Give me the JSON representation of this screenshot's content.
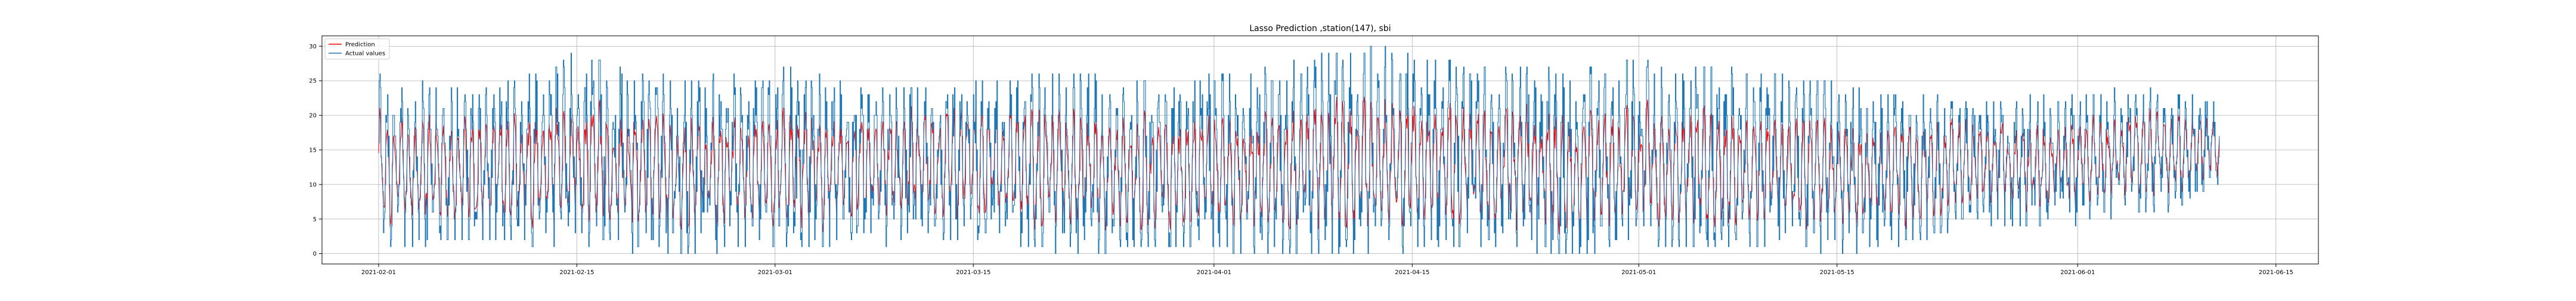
{
  "chart_data": {
    "type": "line",
    "title": "Lasso Prediction ,station(147), sbi",
    "xlabel": "",
    "ylabel": "",
    "x_range": [
      "2021-01-28",
      "2021-06-18"
    ],
    "ylim": [
      -1.5,
      31.5
    ],
    "grid": true,
    "legend_position": "top-left",
    "x_ticks": [
      "2021-02-01",
      "2021-02-15",
      "2021-03-01",
      "2021-03-15",
      "2021-04-01",
      "2021-04-15",
      "2021-05-01",
      "2021-05-15",
      "2021-06-01",
      "2021-06-15"
    ],
    "y_ticks": [
      0,
      5,
      10,
      15,
      20,
      25,
      30
    ],
    "data_range": [
      "2021-02-01",
      "2021-06-11"
    ],
    "series": [
      {
        "name": "Prediction",
        "color": "#ff0000"
      },
      {
        "name": "Actual values",
        "color": "#1f77b4"
      }
    ],
    "daily_summary": {
      "dates": [
        "2021-02-01",
        "2021-02-08",
        "2021-02-15",
        "2021-02-22",
        "2021-03-01",
        "2021-03-08",
        "2021-03-15",
        "2021-03-22",
        "2021-03-29",
        "2021-04-05",
        "2021-04-12",
        "2021-04-19",
        "2021-04-26",
        "2021-05-03",
        "2021-05-10",
        "2021-05-17",
        "2021-05-24",
        "2021-05-31",
        "2021-06-07",
        "2021-06-11"
      ],
      "actual_high": [
        26,
        23,
        29,
        25,
        27,
        24,
        25,
        26,
        25,
        27,
        30,
        27,
        27,
        28,
        26,
        24,
        22,
        23,
        24,
        22
      ],
      "actual_low": [
        1,
        2,
        1,
        0,
        1,
        1,
        2,
        0,
        1,
        0,
        0,
        1,
        0,
        1,
        1,
        0,
        4,
        4,
        6,
        9
      ],
      "prediction_high": [
        22,
        20,
        23,
        21,
        22,
        21,
        24,
        22,
        21,
        22,
        24,
        22,
        22,
        23,
        21,
        20,
        20,
        20,
        22,
        21
      ],
      "prediction_low": [
        3,
        4,
        3,
        2,
        3,
        3,
        4,
        2,
        3,
        2,
        2,
        3,
        2,
        3,
        3,
        2,
        6,
        5,
        8,
        10
      ]
    }
  }
}
